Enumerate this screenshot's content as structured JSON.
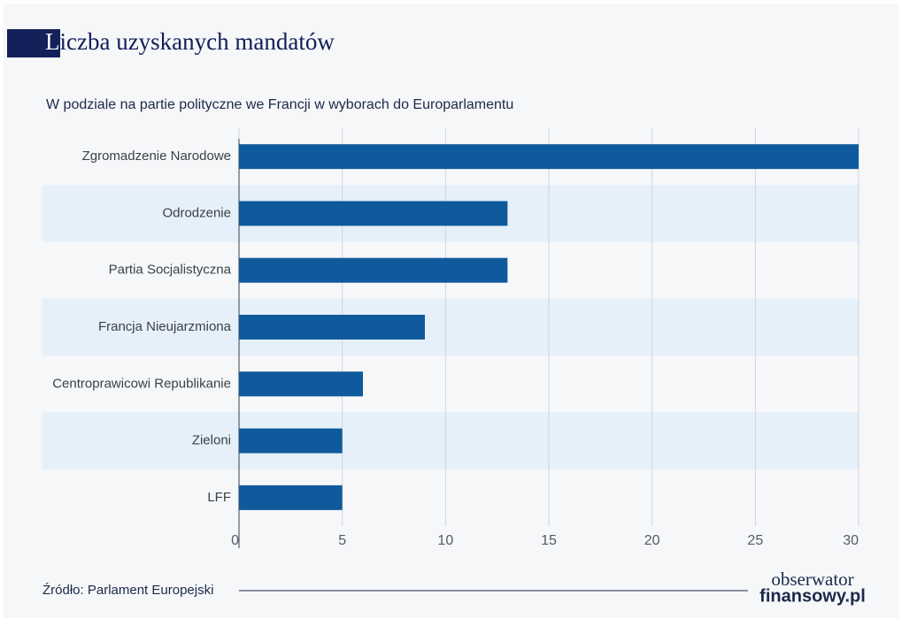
{
  "chart_data": {
    "type": "bar",
    "orientation": "horizontal",
    "title": "Liczba uzyskanych mandatów",
    "subtitle": "W podziale na partie polityczne we Francji w wyborach do Europarlamentu",
    "source": "Źródło: Parlament Europejski",
    "categories": [
      "Zgromadzenie Narodowe",
      "Odrodzenie",
      "Partia Socjalistyczna",
      "Francja Nieujarzmiona",
      "Centroprawicowi Republikanie",
      "Zieloni",
      "LFF"
    ],
    "values": [
      30,
      13,
      13,
      9,
      6,
      5,
      5
    ],
    "color": "#0e5a9c",
    "xlim": [
      0,
      30
    ],
    "xticks": [
      0,
      5,
      10,
      15,
      20,
      25,
      30
    ],
    "grid": true
  },
  "logo": {
    "line1": "obserwator",
    "line2": "finansowy.pl"
  }
}
